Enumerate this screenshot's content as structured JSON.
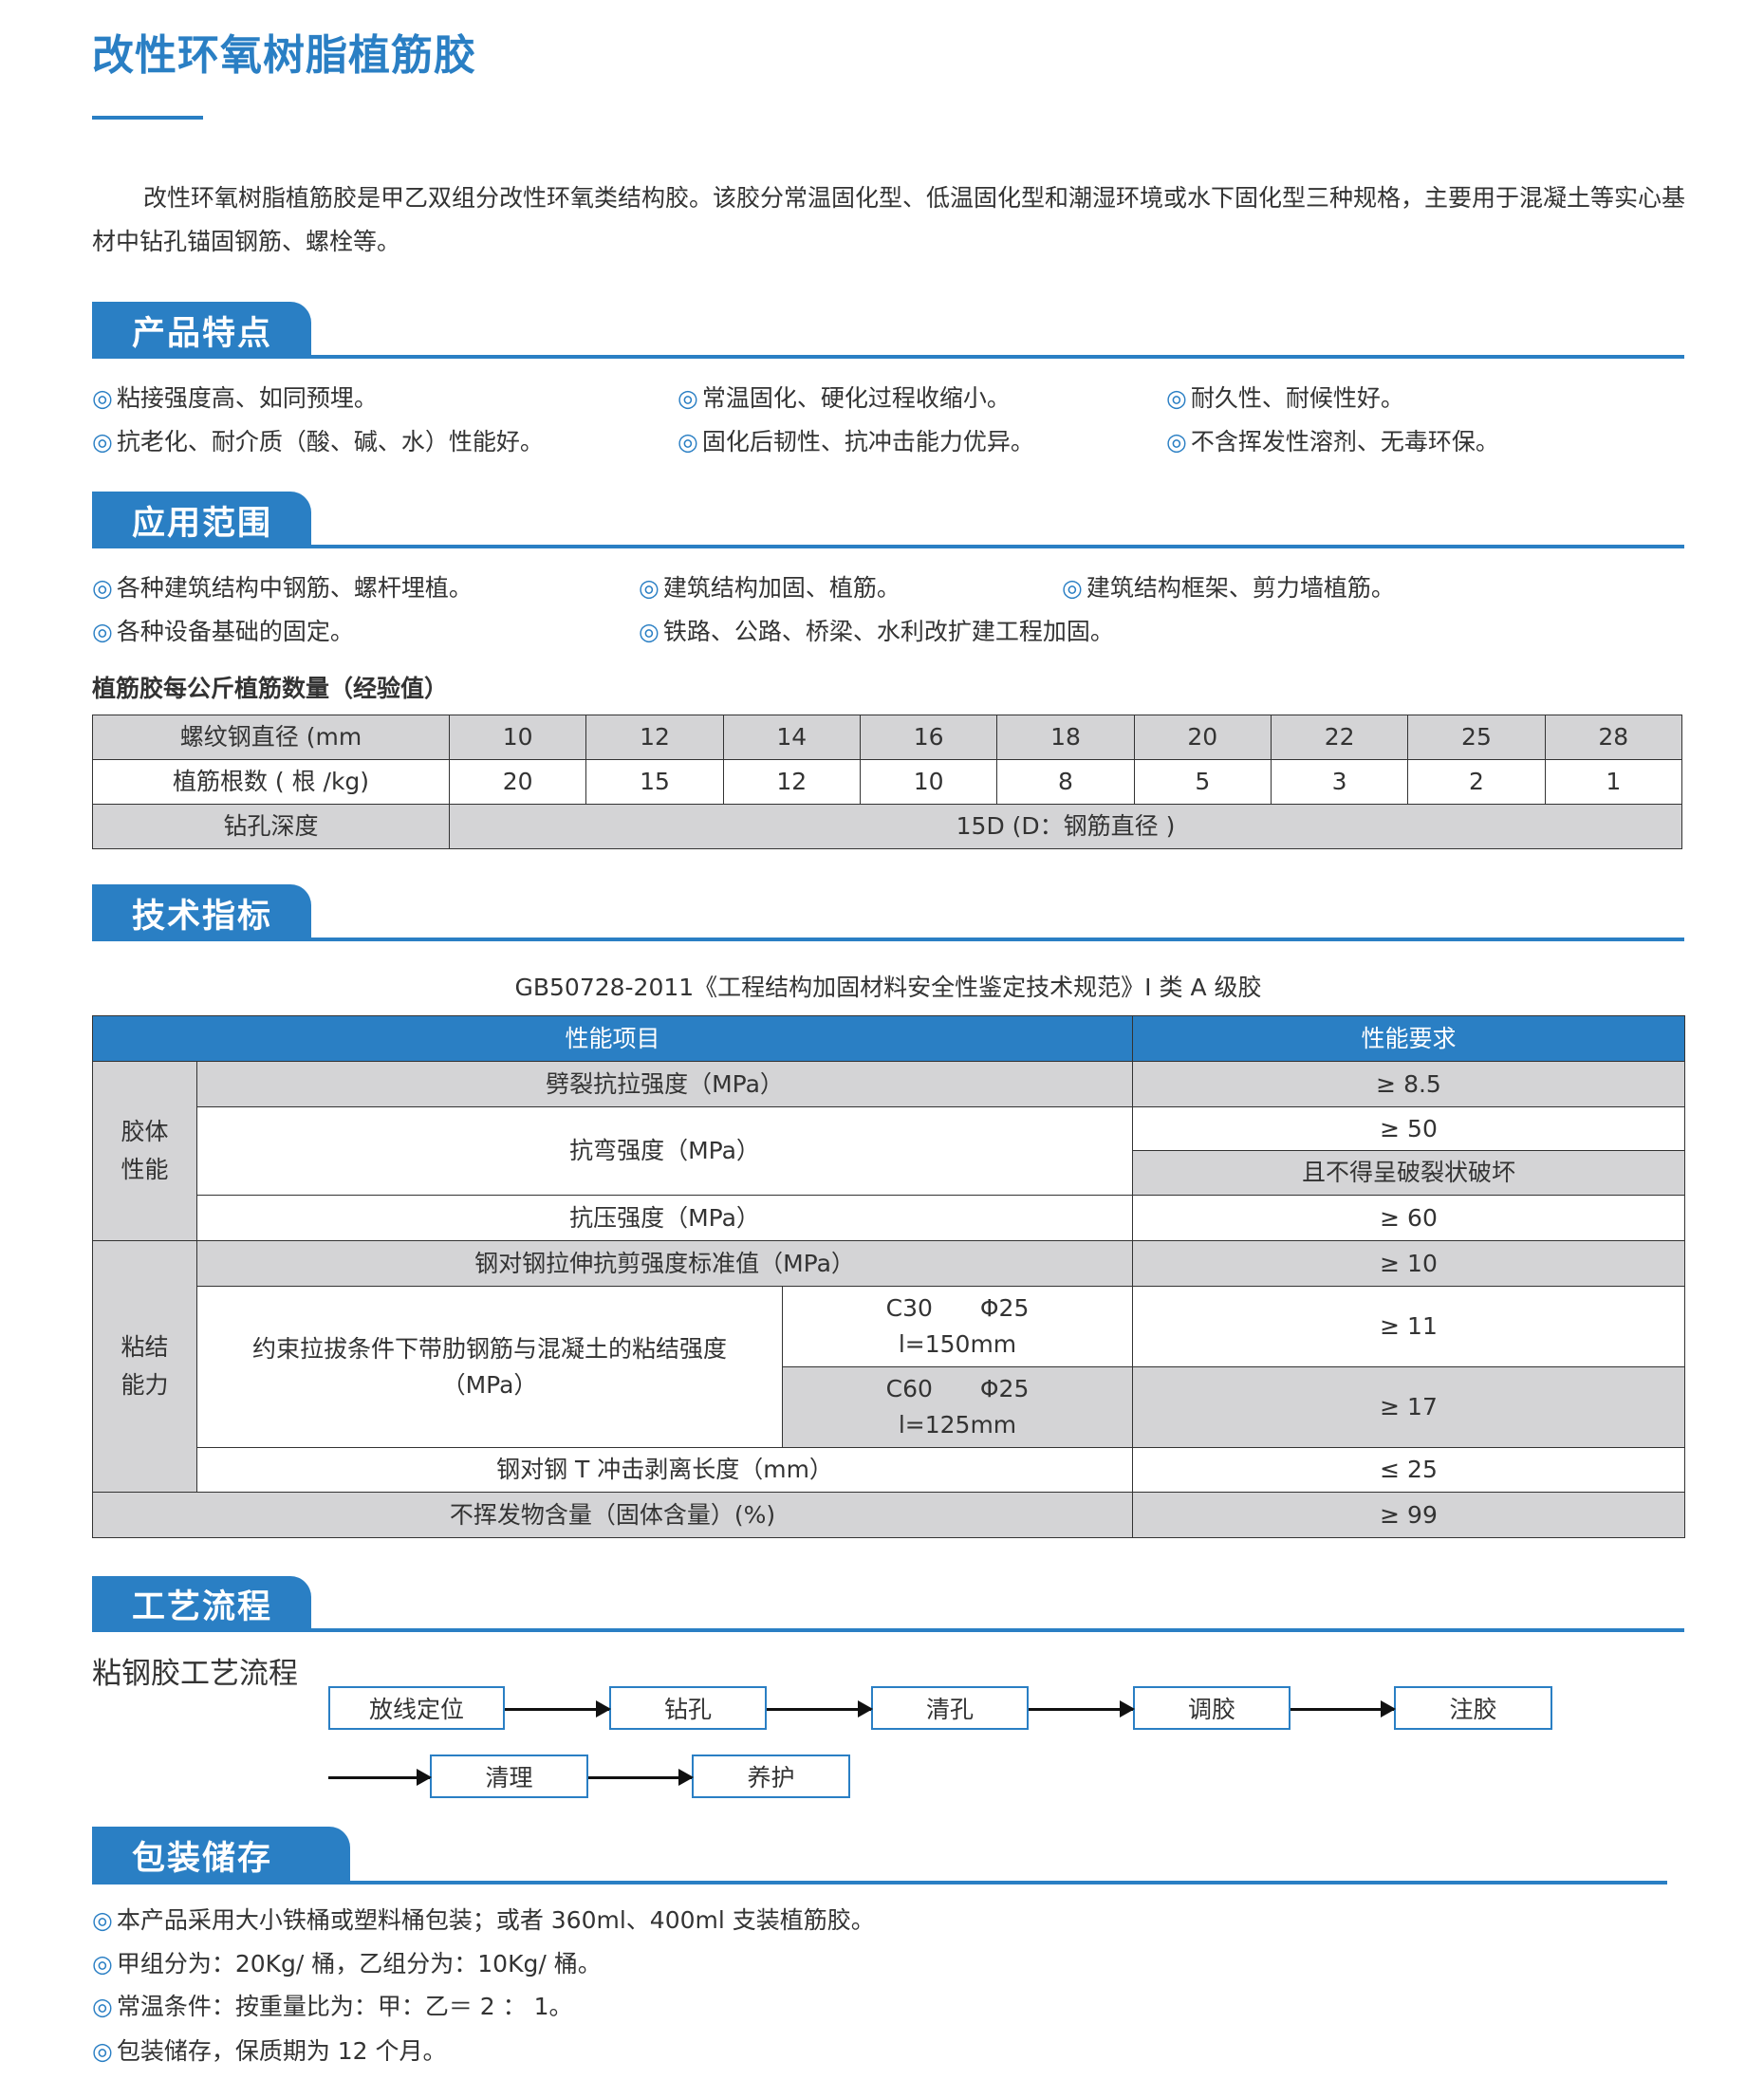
{
  "title": "改性环氧树脂植筋胶",
  "intro": "改性环氧树脂植筋胶是甲乙双组分改性环氧类结构胶。该胶分常温固化型、低温固化型和潮湿环境或水下固化型三种规格，主要用于混凝土等实心基材中钻孔锚固钢筋、螺栓等。",
  "bullet": "◎",
  "sections": {
    "features": {
      "title": "产品特点",
      "items": [
        "粘接强度高、如同预埋。",
        "常温固化、硬化过程收缩小。",
        "耐久性、耐候性好。",
        "抗老化、耐介质（酸、碱、水）性能好。",
        "固化后韧性、抗冲击能力优异。",
        "不含挥发性溶剂、无毒环保。"
      ]
    },
    "applications": {
      "title": "应用范围",
      "items": [
        "各种建筑结构中钢筋、螺杆埋植。",
        "建筑结构加固、植筋。",
        "建筑结构框架、剪力墙植筋。",
        "各种设备基础的固定。",
        "铁路、公路、桥梁、水利改扩建工程加固。"
      ]
    },
    "specs": {
      "title": "技术指标"
    },
    "process": {
      "title": "工艺流程"
    },
    "packaging": {
      "title": "包装储存",
      "items": [
        "本产品采用大小铁桶或塑料桶包装；或者 360ml、400ml 支装植筋胶。",
        "甲组分为：20Kg/ 桶，乙组分为：10Kg/ 桶。",
        "常温条件：按重量比为：甲：乙＝ 2 ： 1。",
        "包装储存，保质期为 12 个月。"
      ]
    }
  },
  "dosage_table": {
    "caption": "植筋胶每公斤植筋数量（经验值）",
    "row1_label": "螺纹钢直径 (mm",
    "diameters": [
      "10",
      "12",
      "14",
      "16",
      "18",
      "20",
      "22",
      "25",
      "28"
    ],
    "row2_label": "植筋根数 ( 根 /kg)",
    "counts": [
      "20",
      "15",
      "12",
      "10",
      "8",
      "5",
      "3",
      "2",
      "1"
    ],
    "row3_label": "钻孔深度",
    "depth": "15D (D：钢筋直径 )"
  },
  "spec_table": {
    "standard": "GB50728-2011《工程结构加固材料安全性鉴定技术规范》I 类 A 级胶",
    "header": [
      "性能项目",
      "性能要求"
    ],
    "group1": "胶体\n性能",
    "group2": "粘结\n能力",
    "r1": [
      "劈裂抗拉强度（MPa）",
      "≥ 8.5"
    ],
    "r2": [
      "抗弯强度（MPa）",
      "≥ 50",
      "且不得呈破裂状破坏"
    ],
    "r3": [
      "抗压强度（MPa）",
      "≥ 60"
    ],
    "r4": [
      "钢对钢拉伸抗剪强度标准值（MPa）",
      "≥ 10"
    ],
    "r5": [
      "约束拉拔条件下带肋钢筋与混凝土的粘结强度\n（MPa）",
      "C30　　Φ25\nl=150mm",
      "≥ 11",
      "C60　　Φ25\nl=125mm",
      "≥ 17"
    ],
    "r6": [
      "钢对钢 T 冲击剥离长度（mm）",
      "≤ 25"
    ],
    "r7": [
      "不挥发物含量（固体含量）(%)",
      "≥ 99"
    ]
  },
  "flow": {
    "label": "粘钢胶工艺流程",
    "steps": [
      "放线定位",
      "钻孔",
      "清孔",
      "调胶",
      "注胶",
      "清理",
      "养护"
    ]
  },
  "colors": {
    "accent": "#2a7fc4",
    "cell_gray": "#d4d4d6"
  }
}
